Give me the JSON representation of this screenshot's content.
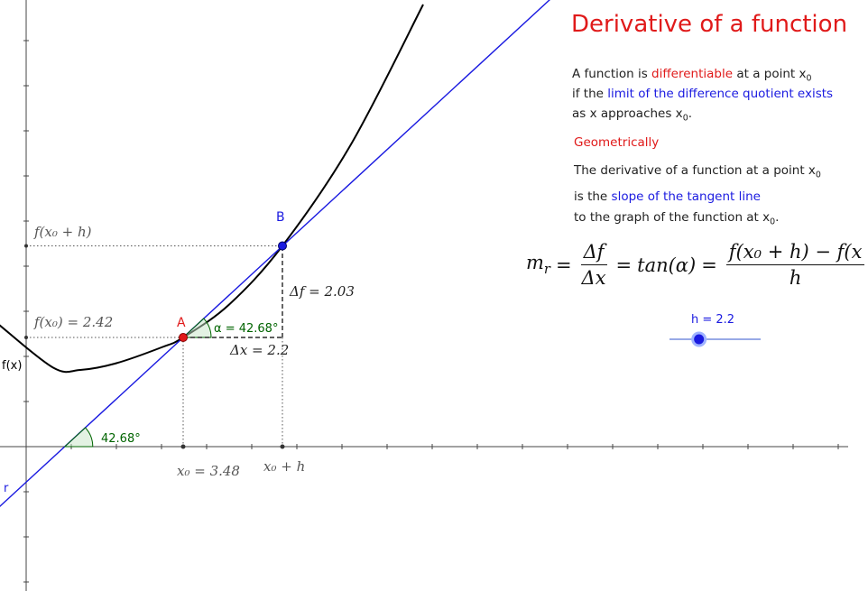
{
  "title": "Derivative of a function",
  "text": {
    "line1_a": "A function is ",
    "line1_b": "differentiable",
    "line1_c": " at a point x",
    "sub0": "0",
    "line2_a": "if the ",
    "line2_b": "limit of the difference quotient exists",
    "line3": "as x approaches x",
    "line3_end": ".",
    "geometrically": "Geometrically",
    "line4": "The derivative of a function at a point x",
    "line5_a": "is the ",
    "line5_b": "slope of the tangent line",
    "line6": "to the graph of the function at x",
    "line6_end": "."
  },
  "formula": {
    "lhs": "m",
    "lhs_sub": "r",
    "eq": "=",
    "frac1_num": "Δf",
    "frac1_den": "Δx",
    "mid": "tan(α)",
    "frac2_num": "f(x₀ + h) − f(x",
    "frac2_den": "h"
  },
  "slider": {
    "label": "h = 2.2",
    "value": 2.2,
    "min": 0,
    "max": 6.8
  },
  "labels": {
    "point_a": "A",
    "point_b": "B",
    "fx_label": "f(x)",
    "tangent_label": "r",
    "alpha_label": "α = 42.68°",
    "angle_label": "42.68°",
    "delta_f": "Δf = 2.03",
    "delta_x": "Δx = 2.2",
    "f_x0": "f(x₀) = 2.42",
    "f_x0_h": "f(x₀ + h)",
    "x0": "x₀ = 3.48",
    "x0_h": "x₀ + h"
  },
  "colors": {
    "title_red": "#e01a1a",
    "blue": "#1a1ae0",
    "green": "#006400",
    "curve": "#000000",
    "axis": "#444444"
  },
  "chart_data": {
    "type": "line",
    "x0": 3.48,
    "h": 2.2,
    "f_x0": 2.42,
    "delta_f": 2.03,
    "delta_x": 2.2,
    "alpha_deg": 42.68,
    "series": [
      {
        "name": "f(x)",
        "points": [
          [
            -0.6,
            2.7
          ],
          [
            0.6,
            1.75
          ],
          [
            1.2,
            1.7
          ],
          [
            2.0,
            1.85
          ],
          [
            3.0,
            2.2
          ],
          [
            3.48,
            2.42
          ],
          [
            4.5,
            3.15
          ],
          [
            5.68,
            4.45
          ],
          [
            7.2,
            6.7
          ],
          [
            8.8,
            9.8
          ]
        ]
      },
      {
        "name": "r",
        "points": [
          [
            -0.6,
            -1.34
          ],
          [
            12.0,
            10.27
          ]
        ]
      }
    ]
  }
}
